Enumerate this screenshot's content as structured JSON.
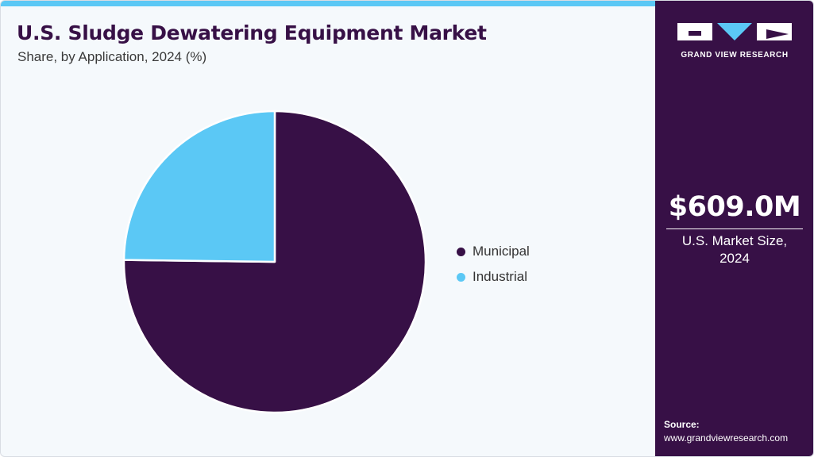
{
  "header": {
    "title": "U.S. Sludge Dewatering Equipment Market",
    "subtitle": "Share, by Application, 2024 (%)"
  },
  "colors": {
    "accent": "#5bc8f5",
    "panel": "#371046",
    "background": "#f5f9fc"
  },
  "chart_data": {
    "type": "pie",
    "title": "U.S. Sludge Dewatering Equipment Market",
    "subtitle": "Share, by Application, 2024 (%)",
    "categories": [
      "Municipal",
      "Industrial"
    ],
    "values": [
      75.2,
      24.8
    ],
    "colors": [
      "#371046",
      "#5bc8f5"
    ],
    "legend": "right"
  },
  "side_panel": {
    "logo_text": "GRAND VIEW RESEARCH",
    "market_value": "$609.0M",
    "market_label_line1": "U.S. Market Size,",
    "market_label_line2": "2024",
    "source_label": "Source:",
    "source_url": "www.grandviewresearch.com"
  }
}
